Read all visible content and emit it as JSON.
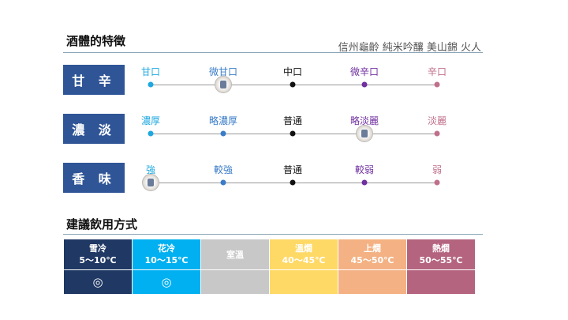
{
  "section1": {
    "title": "酒體的特徵",
    "product": "信州龜齡 純米吟釀 美山錦 火人"
  },
  "scales": [
    {
      "label": "甘 辛",
      "options": [
        "甘口",
        "微甘口",
        "中口",
        "微辛口",
        "辛口"
      ],
      "selected_index": 1
    },
    {
      "label": "濃 淡",
      "options": [
        "濃厚",
        "略濃厚",
        "普通",
        "略淡麗",
        "淡麗"
      ],
      "selected_index": 3
    },
    {
      "label": "香 味",
      "options": [
        "強",
        "較強",
        "普通",
        "較弱",
        "弱"
      ],
      "selected_index": 0
    }
  ],
  "scale_colors": [
    "#1fa8e0",
    "#3a7cc8",
    "#111111",
    "#7030a0",
    "#c0708a"
  ],
  "section2": {
    "title": "建議飲用方式"
  },
  "serving": [
    {
      "name": "雪冷",
      "temp": "5～10℃",
      "mark": "◎",
      "color": "#1f3864"
    },
    {
      "name": "花冷",
      "temp": "10～15℃",
      "mark": "◎",
      "color": "#00b0f0"
    },
    {
      "name": "室溫",
      "temp": "",
      "mark": "",
      "color": "#c8c8c8"
    },
    {
      "name": "溫燗",
      "temp": "40～45℃",
      "mark": "",
      "color": "#ffd966"
    },
    {
      "name": "上燗",
      "temp": "45～50℃",
      "mark": "",
      "color": "#f4b183"
    },
    {
      "name": "熱燗",
      "temp": "50～55℃",
      "mark": "",
      "color": "#b4647e"
    }
  ]
}
